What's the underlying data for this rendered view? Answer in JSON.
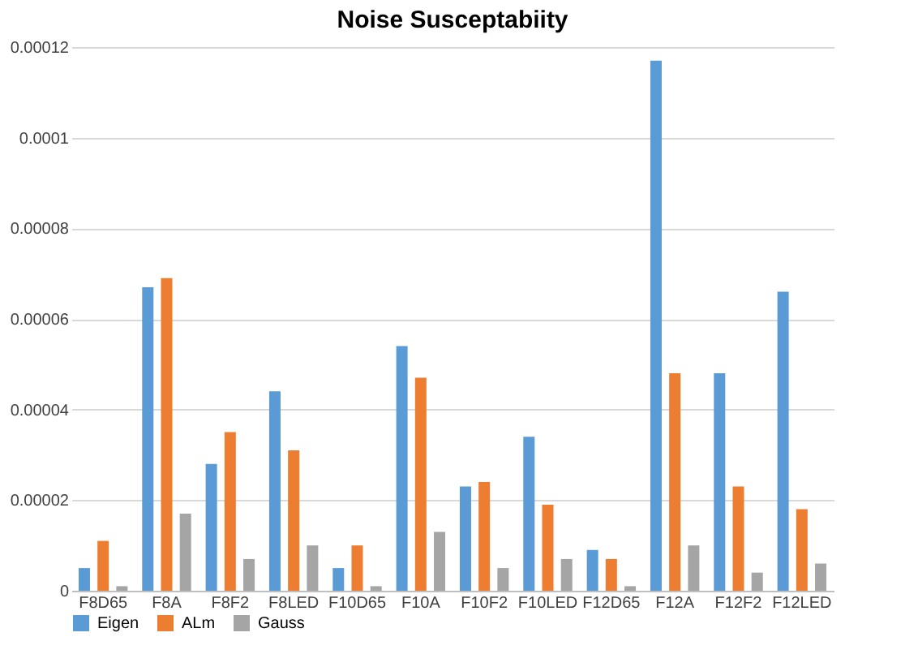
{
  "chart_data": {
    "type": "bar",
    "title": "Noise Susceptabiity",
    "categories": [
      "F8D65",
      "F8A",
      "F8F2",
      "F8LED",
      "F10D65",
      "F10A",
      "F10F2",
      "F10LED",
      "F12D65",
      "F12A",
      "F12F2",
      "F12LED"
    ],
    "series": [
      {
        "name": "Eigen",
        "color": "#5b9bd5",
        "values": [
          5e-06,
          6.7e-05,
          2.8e-05,
          4.4e-05,
          5e-06,
          5.4e-05,
          2.3e-05,
          3.4e-05,
          9e-06,
          0.000117,
          4.8e-05,
          6.6e-05
        ]
      },
      {
        "name": "ALm",
        "color": "#ed7d31",
        "values": [
          1.1e-05,
          6.9e-05,
          3.5e-05,
          3.1e-05,
          1e-05,
          4.7e-05,
          2.4e-05,
          1.9e-05,
          7e-06,
          4.8e-05,
          2.3e-05,
          1.8e-05
        ]
      },
      {
        "name": "Gauss",
        "color": "#a5a5a5",
        "values": [
          1e-06,
          1.7e-05,
          7e-06,
          1e-05,
          1e-06,
          1.3e-05,
          5e-06,
          7e-06,
          1e-06,
          1e-05,
          4e-06,
          6e-06
        ]
      }
    ],
    "ylim": [
      0,
      0.00012
    ],
    "yticks": [
      0,
      {
        "value": 2e-05,
        "label": "0.00002"
      },
      {
        "value": 4e-05,
        "label": "0.00004"
      },
      {
        "value": 6e-05,
        "label": "0.00006"
      },
      {
        "value": 8e-05,
        "label": "0.00008"
      },
      {
        "value": 0.0001,
        "label": "0.0001"
      },
      {
        "value": 0.00012,
        "label": "0.00012"
      }
    ],
    "grid": "y",
    "legend": "bottom"
  }
}
